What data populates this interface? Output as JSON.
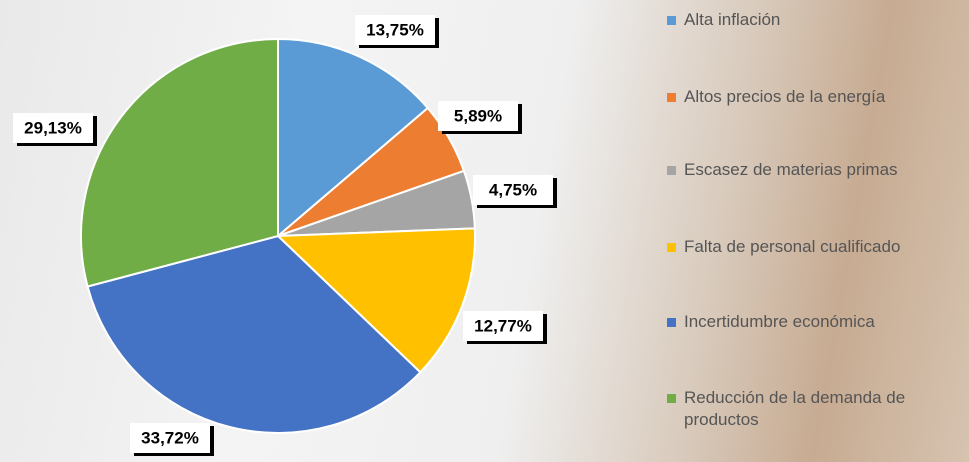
{
  "chart_data": {
    "type": "pie",
    "categories": [
      "Alta inflación",
      "Altos precios de la energía",
      "Escasez de materias primas",
      "Falta de personal cualificado",
      "Incertidumbre económica",
      "Reducción de la demanda de productos"
    ],
    "values": [
      13.75,
      5.89,
      4.75,
      12.77,
      33.72,
      29.13
    ],
    "value_labels": [
      "13,75%",
      "5,89%",
      "4,75%",
      "12,77%",
      "33,72%",
      "29,13%"
    ],
    "colors": [
      "#5b9bd5",
      "#ed7d31",
      "#a5a5a5",
      "#ffc000",
      "#4472c4",
      "#70ad47"
    ],
    "legend": "right"
  }
}
